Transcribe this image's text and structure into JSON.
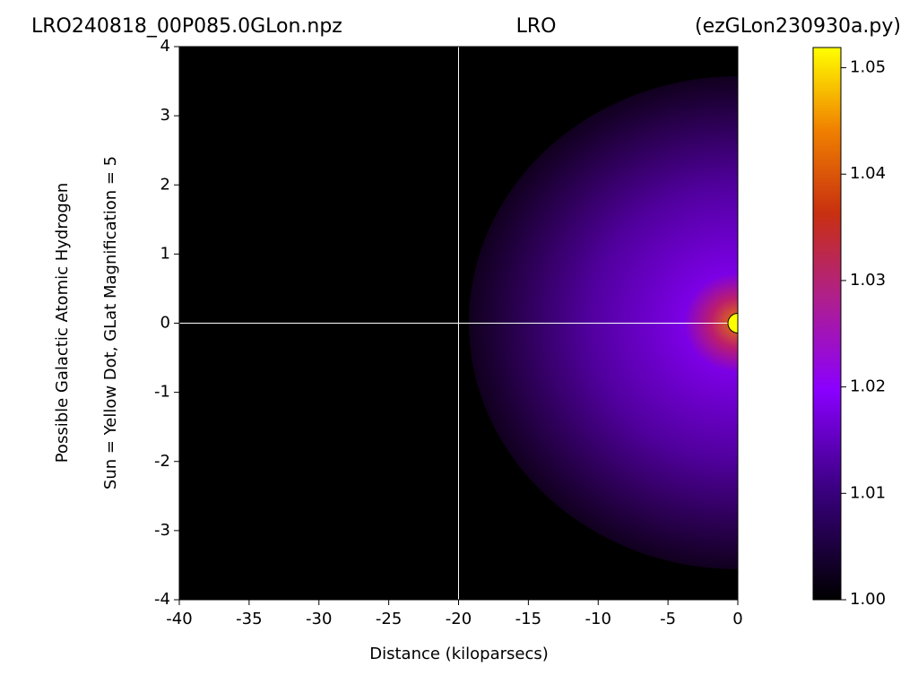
{
  "chart_data": {
    "type": "image",
    "title_left": "LRO240818_00P085.0GLon.npz",
    "title": "LRO",
    "title_right": "(ezGLon230930a.py)",
    "xlabel": "Distance (kiloparsecs)",
    "ylabel": "Possible Galactic Atomic Hydrogen",
    "ylabel2": "Sun = Yellow Dot, GLat Magnification = 5",
    "xlim": [
      -40,
      0
    ],
    "xticks": [
      -40,
      -35,
      -30,
      -25,
      -20,
      -15,
      -10,
      -5,
      0
    ],
    "ylim": [
      -4,
      4
    ],
    "yticks": [
      -4,
      -3,
      -2,
      -1,
      0,
      1,
      2,
      3,
      4
    ],
    "crosshair_x": -20,
    "crosshair_y": 0,
    "sun": {
      "x": 0,
      "y": 0,
      "color": "#ffff00"
    },
    "clim": [
      1,
      1.0519
    ],
    "cticks": [
      {
        "value": 1,
        "label": "1.00"
      },
      1.01,
      1.02,
      1.03,
      1.04,
      1.05
    ]
  }
}
